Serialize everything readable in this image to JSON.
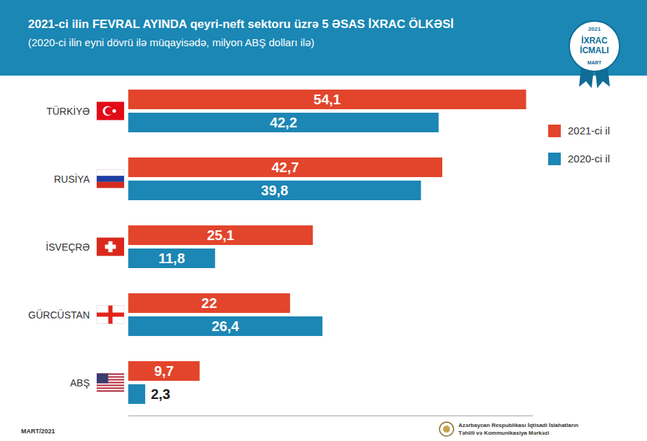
{
  "chart_data": {
    "type": "bar",
    "orientation": "horizontal",
    "title": "2021-ci ilin FEVRAL AYINDA qeyri-neft sektoru üzrə 5 ƏSAS İXRAC ÖLKƏSİ",
    "subtitle": "(2020-ci ilin eyni dövrü ilə müqayisədə, milyon ABŞ dolları ilə)",
    "categories": [
      "TÜRKİYƏ",
      "RUSİYA",
      "İSVEÇRƏ",
      "GÜRCÜSTAN",
      "ABŞ"
    ],
    "series": [
      {
        "name": "2021-ci il",
        "color": "#e2452b",
        "values": [
          54.1,
          42.7,
          25.1,
          22,
          9.7
        ],
        "value_labels": [
          "54,1",
          "42,7",
          "25,1",
          "22",
          "9,7"
        ]
      },
      {
        "name": "2020-ci il",
        "color": "#1c86b4",
        "values": [
          42.2,
          39.8,
          11.8,
          26.4,
          2.3
        ],
        "value_labels": [
          "42,2",
          "39,8",
          "11,8",
          "26,4",
          "2,3"
        ]
      }
    ],
    "xlim": [
      0,
      55
    ],
    "xticks": [],
    "tick_labels": false,
    "data_labels": true,
    "grid": false,
    "legend": "top-right",
    "annotations": [
      "2021",
      "İXRAC İCMALI",
      "MART",
      "MART/2021",
      "Azərbaycan Respublikası İqtisadi İslahatların Təhlili və Kommunikasiya Mərkəzi"
    ]
  }
}
